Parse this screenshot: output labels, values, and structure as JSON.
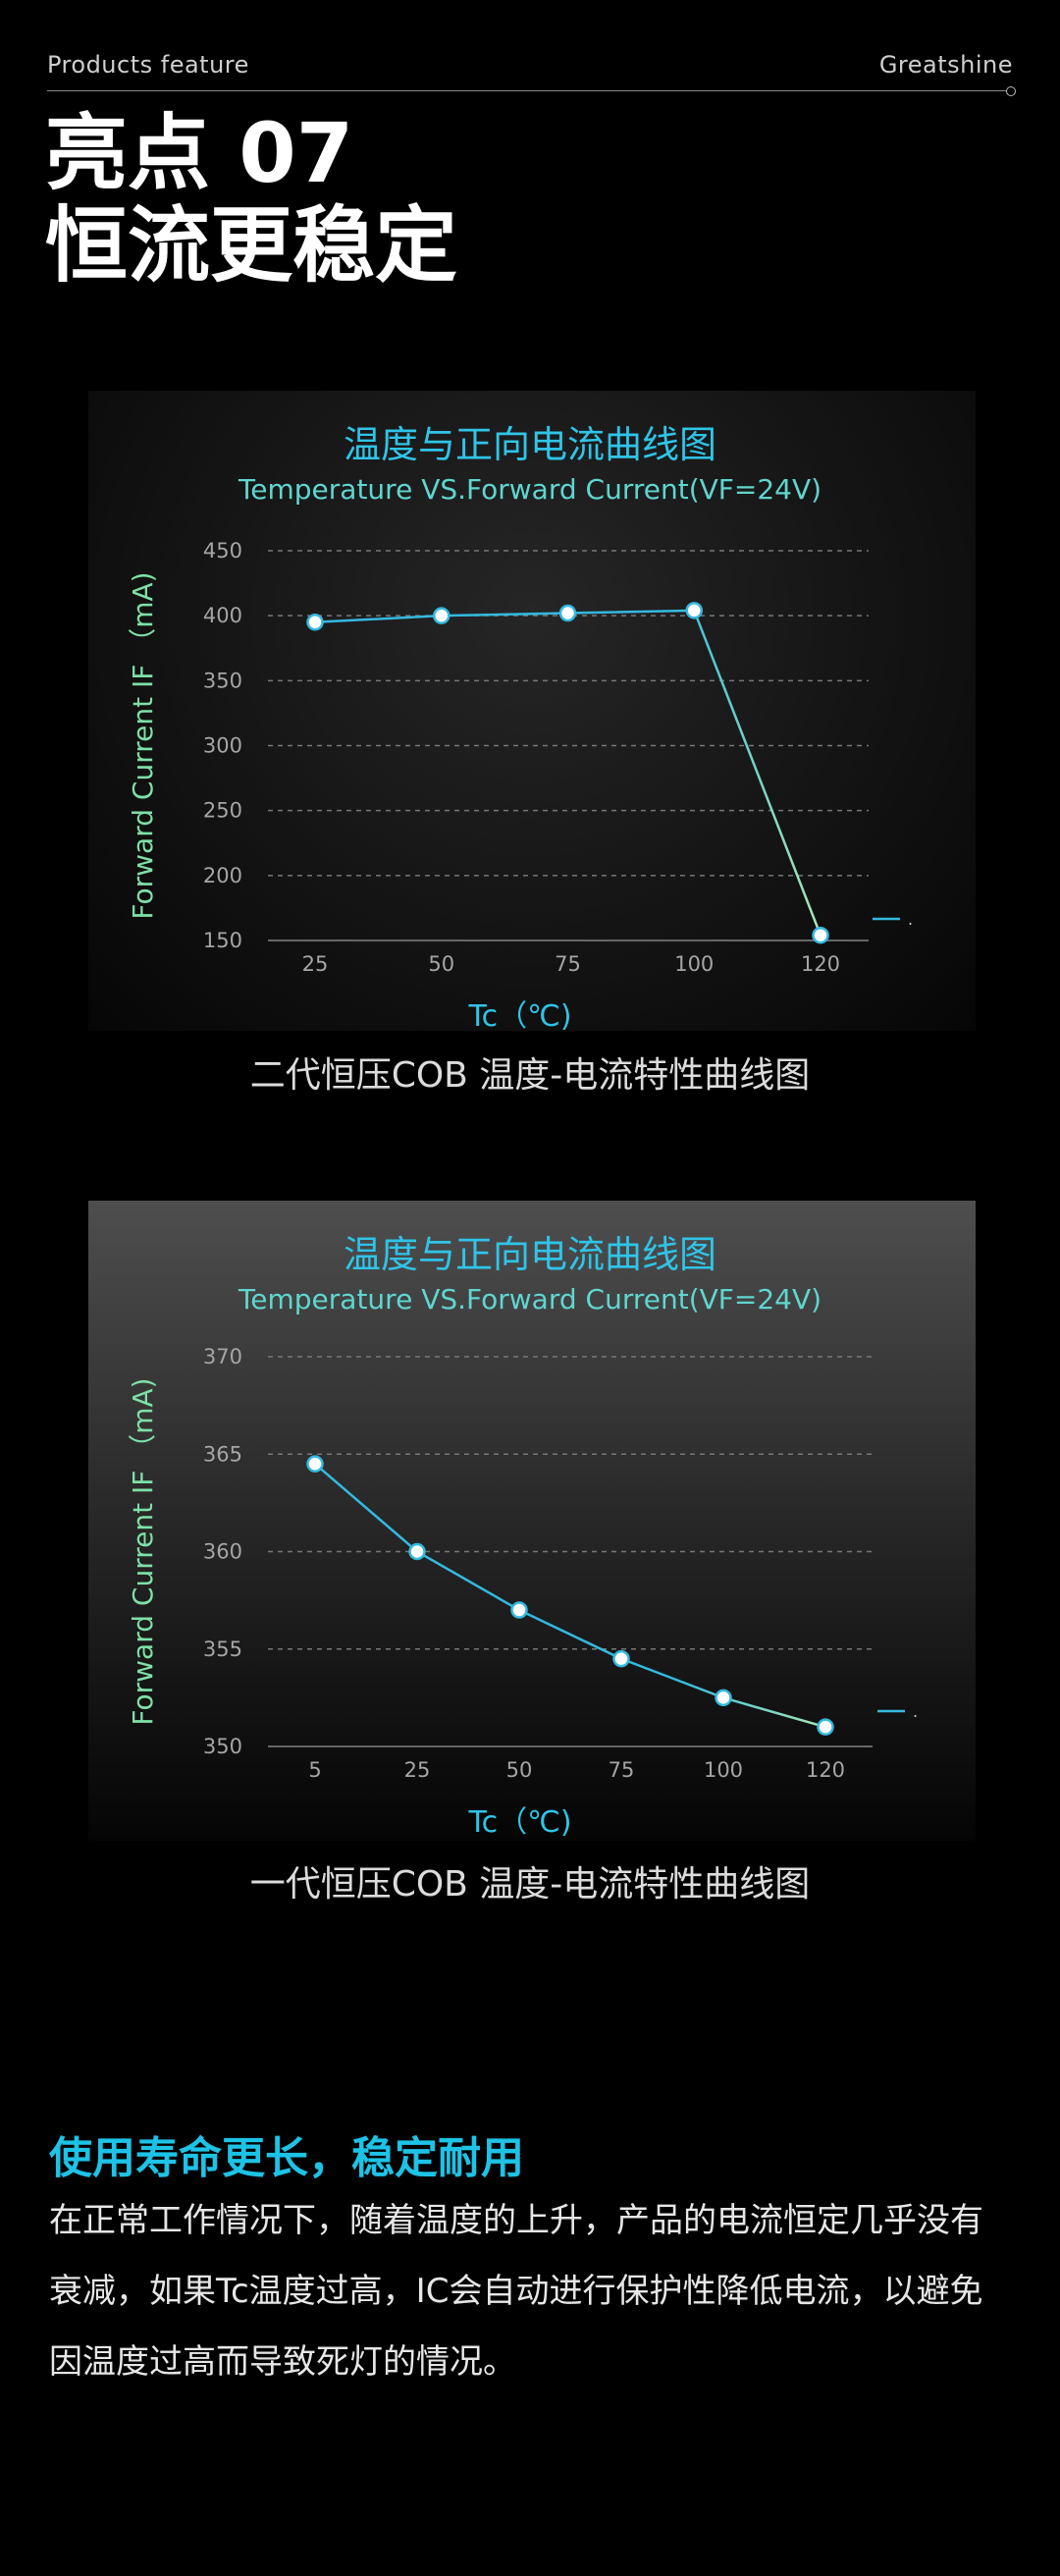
{
  "header": {
    "left": "Products feature",
    "right": "Greatshine"
  },
  "title": {
    "line1": "亮点 07",
    "line2": "恒流更稳定"
  },
  "chart_data": [
    {
      "type": "line",
      "title": "温度与正向电流曲线图",
      "subtitle": "Temperature VS.Forward Current(VF=24V)",
      "xlabel": "Tc（℃)",
      "ylabel": "Forward Current IF （mA)",
      "categories": [
        "25",
        "50",
        "75",
        "100",
        "120"
      ],
      "values": [
        395,
        400,
        402,
        404,
        154
      ],
      "yticks": [
        "150",
        "200",
        "250",
        "300",
        "350",
        "400",
        "450"
      ],
      "ylim": [
        150,
        450
      ],
      "grid": true,
      "legend": "right",
      "colors": {
        "line_start": "#33b9e0",
        "line_end": "#a8e8b4",
        "title": "#2fc4e8",
        "subtitle": "#5fd6cf",
        "axis_label": "#7fe0a8"
      },
      "caption": "二代恒压COB 温度-电流特性曲线图"
    },
    {
      "type": "line",
      "title": "温度与正向电流曲线图",
      "subtitle": "Temperature VS.Forward Current(VF=24V)",
      "xlabel": "Tc（℃)",
      "ylabel": "Forward Current IF （mA)",
      "categories": [
        "5",
        "25",
        "50",
        "75",
        "100",
        "120"
      ],
      "values": [
        364.5,
        360,
        357,
        354.5,
        352.5,
        351
      ],
      "yticks": [
        "350",
        "355",
        "360",
        "365",
        "370"
      ],
      "ylim": [
        350,
        370
      ],
      "grid": true,
      "legend": "right",
      "colors": {
        "line_start": "#33b9e0",
        "line_end": "#a8e8b4",
        "title": "#2fc4e8",
        "subtitle": "#5fd6cf",
        "axis_label": "#7fe0a8"
      },
      "caption": "一代恒压COB 温度-电流特性曲线图"
    }
  ],
  "feature": {
    "title": "使用寿命更长，稳定耐用",
    "body": "在正常工作情况下，随着温度的上升，产品的电流恒定几乎没有衰减，如果Tc温度过高，IC会自动进行保护性降低电流，以避免因温度过高而导致死灯的情况。"
  }
}
